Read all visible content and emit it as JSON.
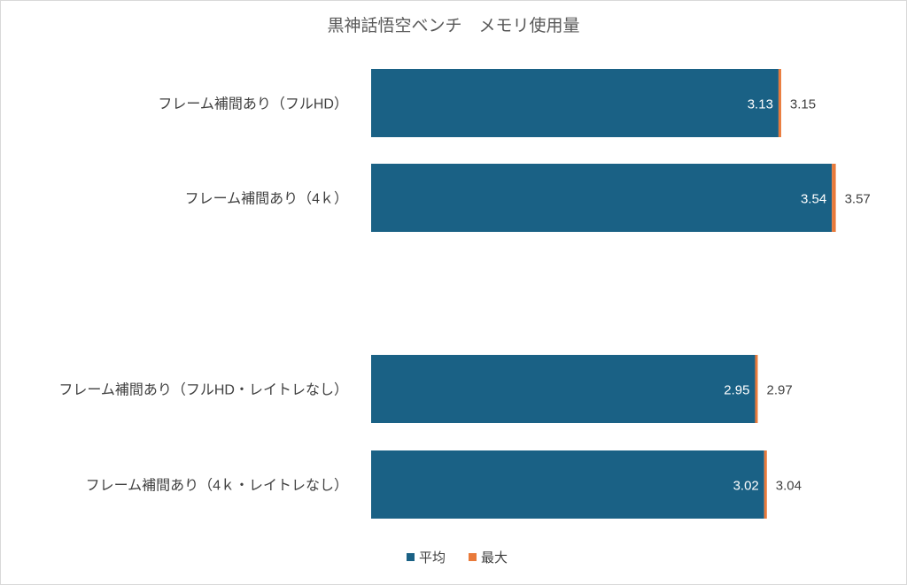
{
  "chart_data": {
    "type": "bar",
    "orientation": "horizontal",
    "stacked": true,
    "title": "黒神話悟空ベンチ　メモリ使用量",
    "categories": [
      "フレーム補間あり（フルHD）",
      "フレーム補間あり（4ｋ）",
      "",
      "フレーム補間あり（フルHD・レイトレなし）",
      "フレーム補間あり（4ｋ・レイトレなし）"
    ],
    "series": [
      {
        "name": "平均",
        "color": "#1a6185",
        "values": [
          3.13,
          3.54,
          null,
          2.95,
          3.02
        ]
      },
      {
        "name": "最大",
        "color": "#e97a3a",
        "values": [
          0.02,
          0.03,
          null,
          0.02,
          0.02
        ]
      }
    ],
    "data_labels": {
      "平均": [
        "3.13",
        "3.54",
        "",
        "2.95",
        "3.02"
      ],
      "最大": [
        "3.15",
        "3.57",
        "",
        "2.97",
        "3.04"
      ]
    },
    "xlim": [
      0,
      3.6
    ],
    "grid": false,
    "axes_visible": false,
    "legend": "bottom-center"
  }
}
